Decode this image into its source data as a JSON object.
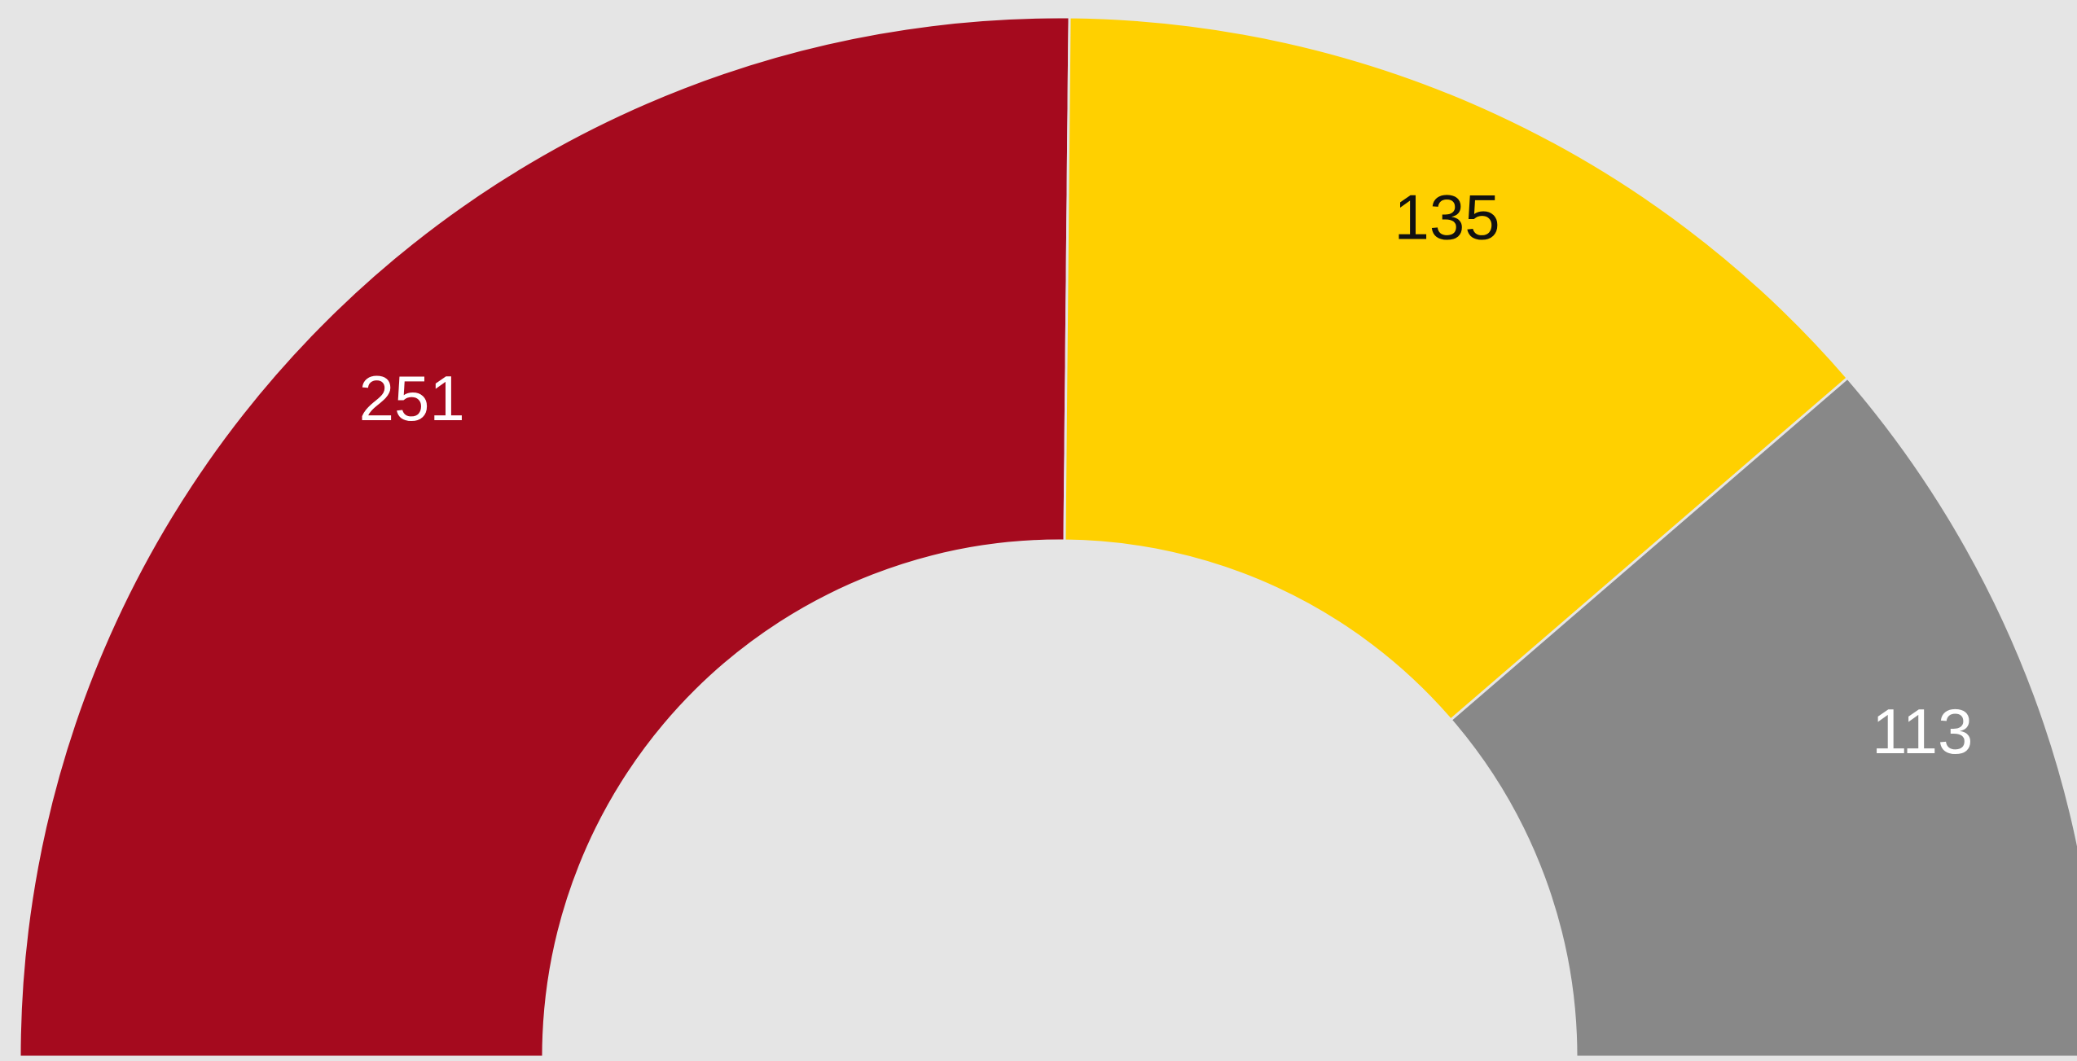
{
  "chart_data": {
    "type": "donut",
    "half": true,
    "values": [
      251,
      135,
      113
    ],
    "colors": [
      "#a50a1e",
      "#ffd000",
      "#888888"
    ],
    "label_colors": [
      "#ffffff",
      "#111111",
      "#ffffff"
    ]
  }
}
